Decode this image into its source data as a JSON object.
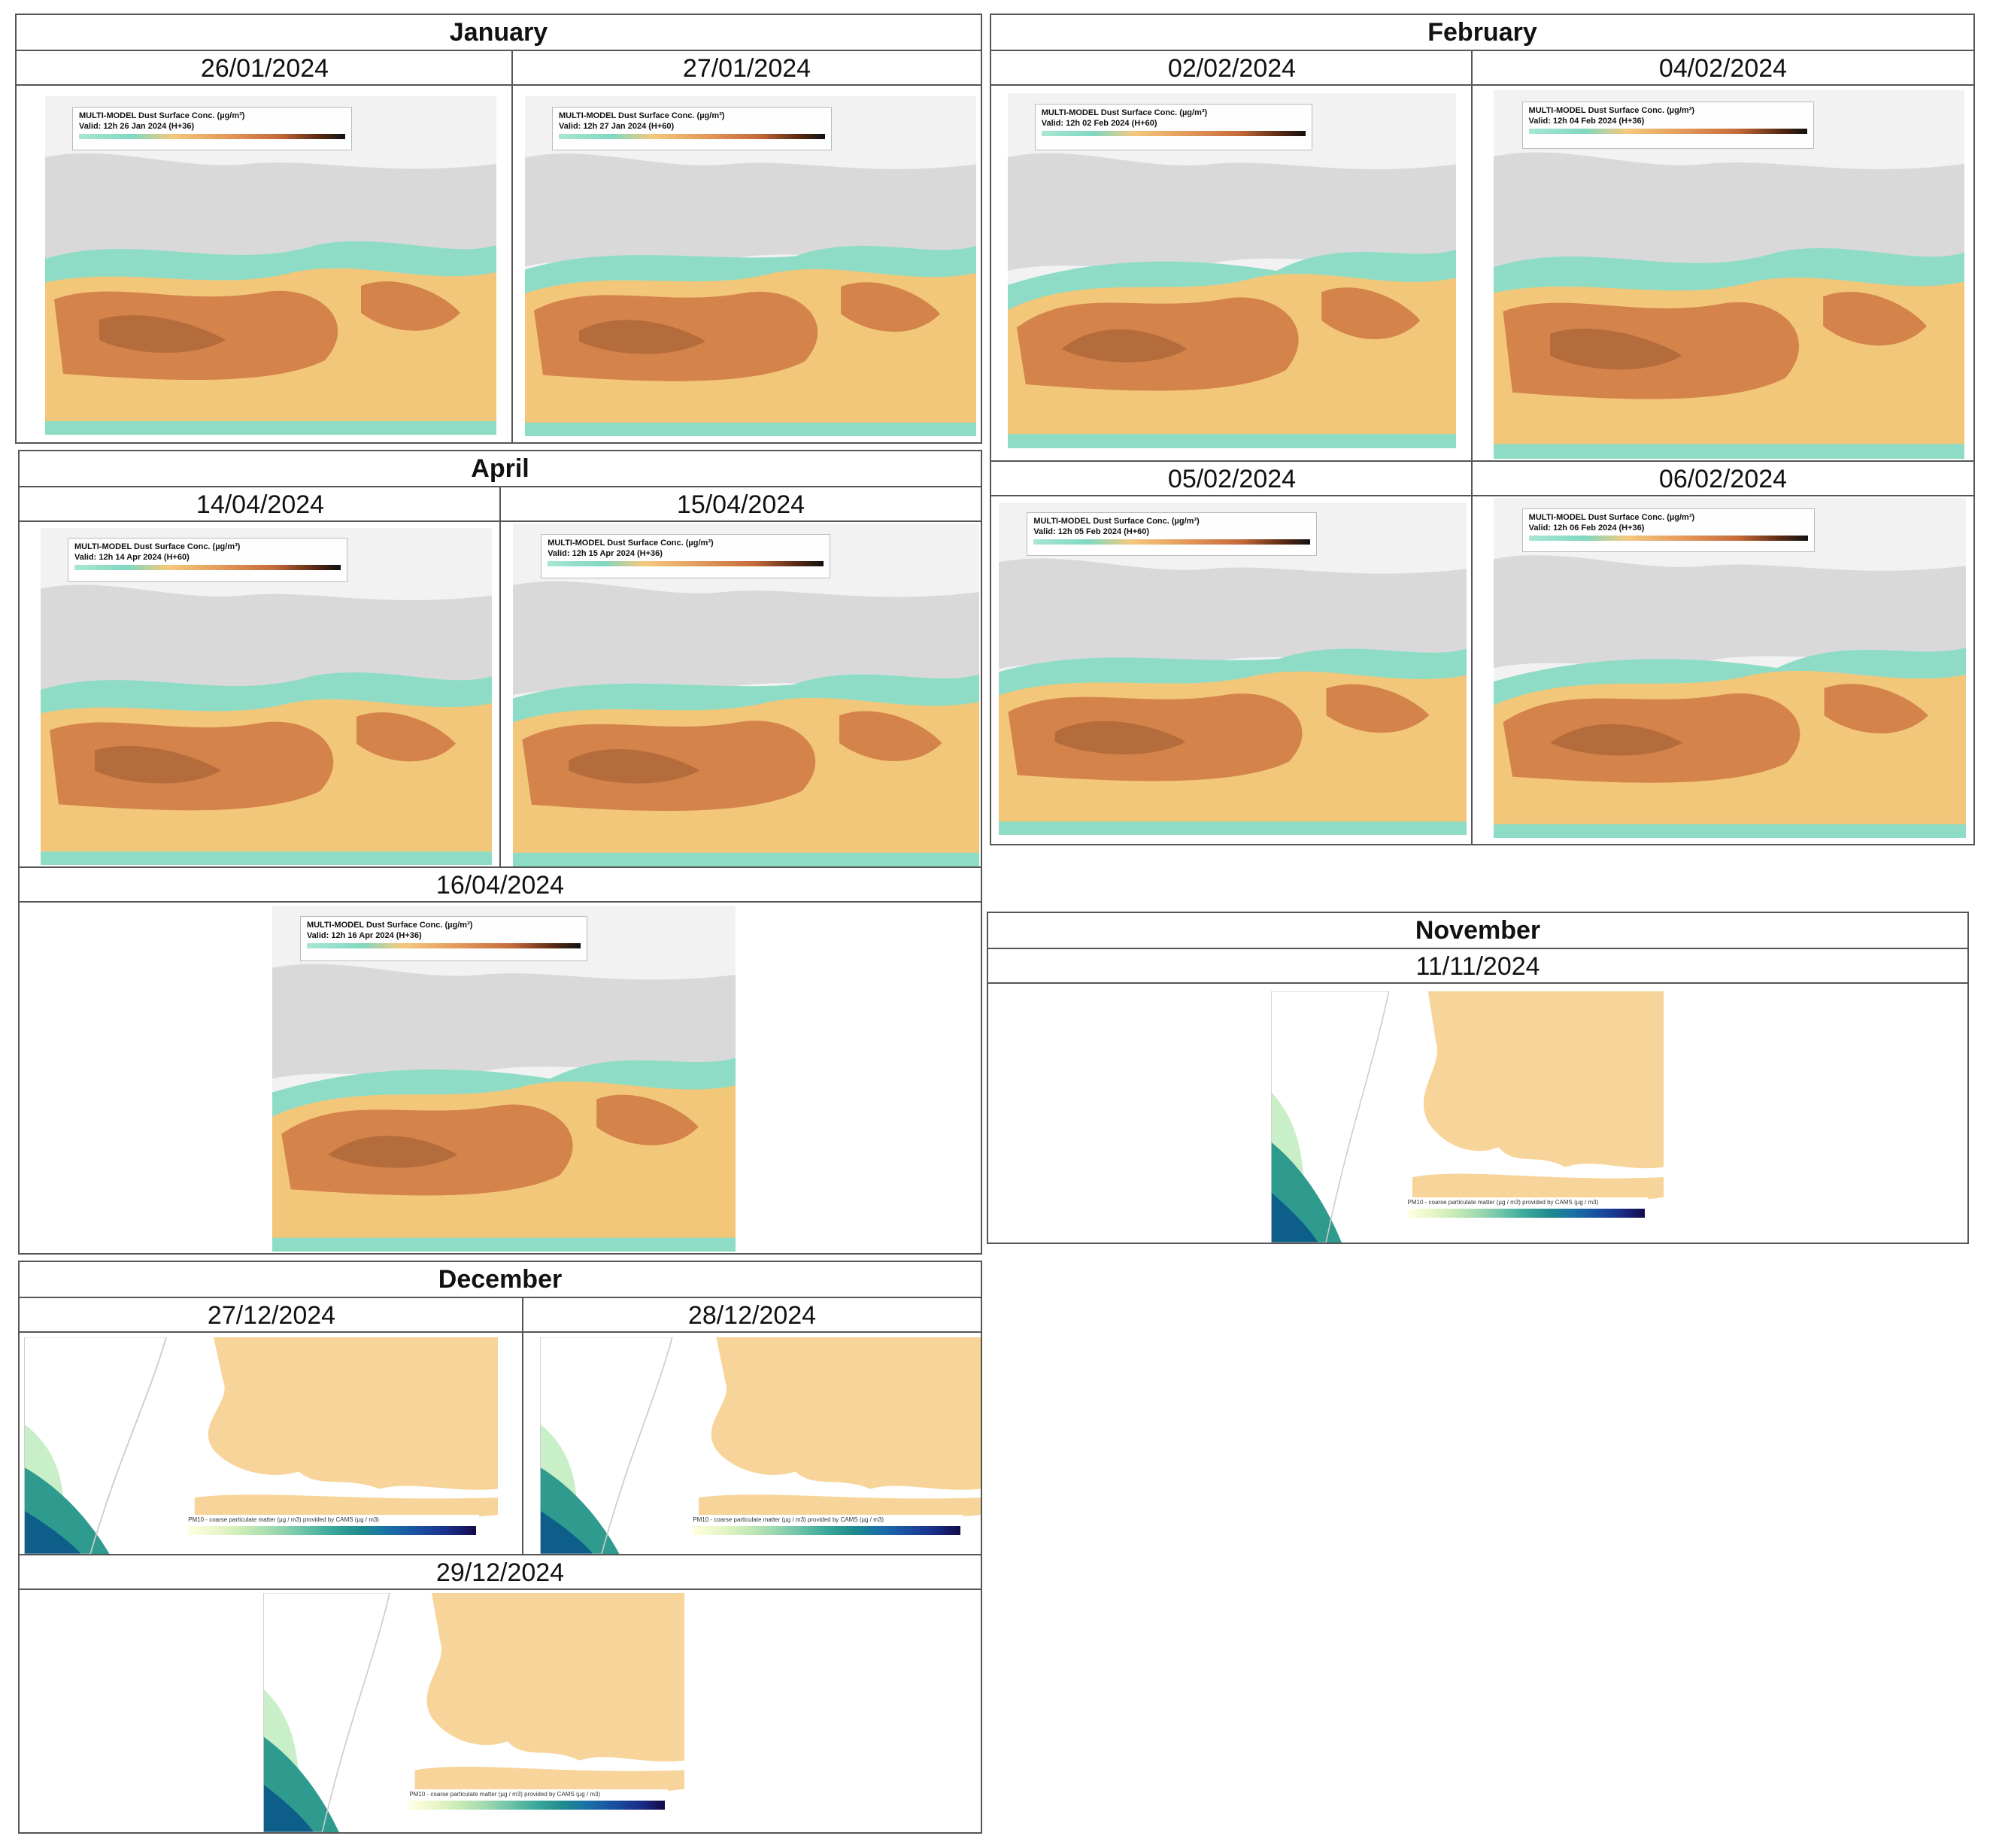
{
  "colors": {
    "border": "#555555",
    "dust_low": "#8fdcc6",
    "dust_mid": "#f2c77a",
    "dust_high": "#d4834b",
    "dust_very_high": "#9a5a32",
    "land_grey": "#d9d9d9",
    "cams_land": "#f7d49a",
    "cams_sea_low": "#c9efc8",
    "cams_sea_high": "#0d5f8a"
  },
  "panels": {
    "january": {
      "title": "January",
      "maps": [
        {
          "date": "26/01/2024",
          "legend_title": "MULTI-MODEL Dust Surface Conc. (µg/m³)",
          "legend_valid": "Valid: 12h 26 Jan 2024 (H+36)"
        },
        {
          "date": "27/01/2024",
          "legend_title": "MULTI-MODEL Dust Surface Conc. (µg/m³)",
          "legend_valid": "Valid: 12h 27 Jan 2024 (H+60)"
        }
      ]
    },
    "february": {
      "title": "February",
      "maps": [
        {
          "date": "02/02/2024",
          "legend_title": "MULTI-MODEL Dust Surface Conc. (µg/m³)",
          "legend_valid": "Valid: 12h 02 Feb 2024 (H+60)"
        },
        {
          "date": "04/02/2024",
          "legend_title": "MULTI-MODEL Dust Surface Conc. (µg/m³)",
          "legend_valid": "Valid: 12h 04 Feb 2024 (H+36)"
        },
        {
          "date": "05/02/2024",
          "legend_title": "MULTI-MODEL Dust Surface Conc. (µg/m³)",
          "legend_valid": "Valid: 12h 05 Feb 2024 (H+60)"
        },
        {
          "date": "06/02/2024",
          "legend_title": "MULTI-MODEL Dust Surface Conc. (µg/m³)",
          "legend_valid": "Valid: 12h 06 Feb 2024 (H+36)"
        }
      ]
    },
    "april": {
      "title": "April",
      "maps": [
        {
          "date": "14/04/2024",
          "legend_title": "MULTI-MODEL Dust Surface Conc. (µg/m³)",
          "legend_valid": "Valid: 12h 14 Apr 2024 (H+60)"
        },
        {
          "date": "15/04/2024",
          "legend_title": "MULTI-MODEL Dust Surface Conc. (µg/m³)",
          "legend_valid": "Valid: 12h 15 Apr 2024 (H+36)"
        },
        {
          "date": "16/04/2024",
          "legend_title": "MULTI-MODEL Dust Surface Conc. (µg/m³)",
          "legend_valid": "Valid: 12h 16 Apr 2024 (H+36)"
        }
      ]
    },
    "november": {
      "title": "November",
      "maps": [
        {
          "date": "11/11/2024",
          "legend_title": "PM10 - coarse particulate matter (µg / m3) provided by CAMS (µg / m3)"
        }
      ]
    },
    "december": {
      "title": "December",
      "maps": [
        {
          "date": "27/12/2024",
          "legend_title": "PM10 - coarse particulate matter (µg / m3) provided by CAMS (µg / m3)"
        },
        {
          "date": "28/12/2024",
          "legend_title": "PM10 - coarse particulate matter (µg / m3) provided by CAMS (µg / m3)"
        },
        {
          "date": "29/12/2024",
          "legend_title": "PM10 - coarse particulate matter (µg / m3) provided by CAMS (µg / m3)"
        }
      ]
    }
  }
}
